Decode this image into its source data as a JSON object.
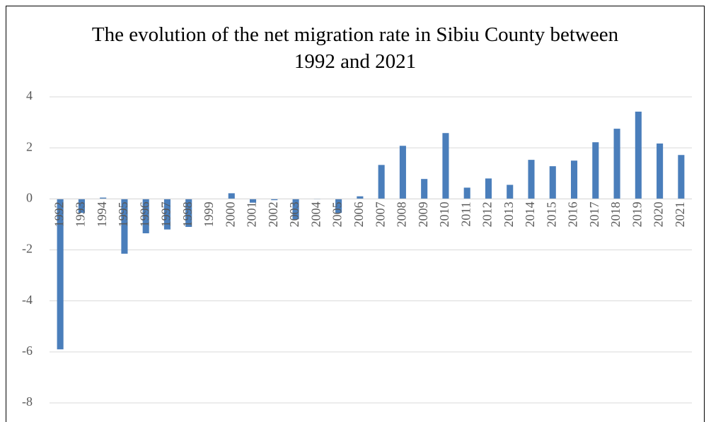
{
  "chart_data": {
    "type": "bar",
    "title": "The evolution of the net migration rate in Sibiu County between 1992 and 2021",
    "categories": [
      "1992",
      "1993",
      "1994",
      "1995",
      "1996",
      "1997",
      "1998",
      "1999",
      "2000",
      "2001",
      "2002",
      "2003",
      "2004",
      "2005",
      "2006",
      "2007",
      "2008",
      "2009",
      "2010",
      "2011",
      "2012",
      "2013",
      "2014",
      "2015",
      "2016",
      "2017",
      "2018",
      "2019",
      "2020",
      "2021"
    ],
    "values": [
      -5.9,
      -0.55,
      0.05,
      -2.15,
      -1.35,
      -1.2,
      -1.1,
      0,
      0.22,
      -0.15,
      -0.05,
      -0.8,
      -0.02,
      -0.55,
      0.1,
      1.33,
      2.08,
      0.78,
      2.58,
      0.44,
      0.8,
      0.55,
      1.53,
      1.28,
      1.5,
      2.22,
      2.75,
      3.42,
      2.17,
      1.72
    ],
    "color": "#4a7ebb",
    "ylim": [
      -8,
      4
    ],
    "yticks": [
      -8,
      -6,
      -4,
      -2,
      0,
      2,
      4
    ],
    "grid": true
  }
}
